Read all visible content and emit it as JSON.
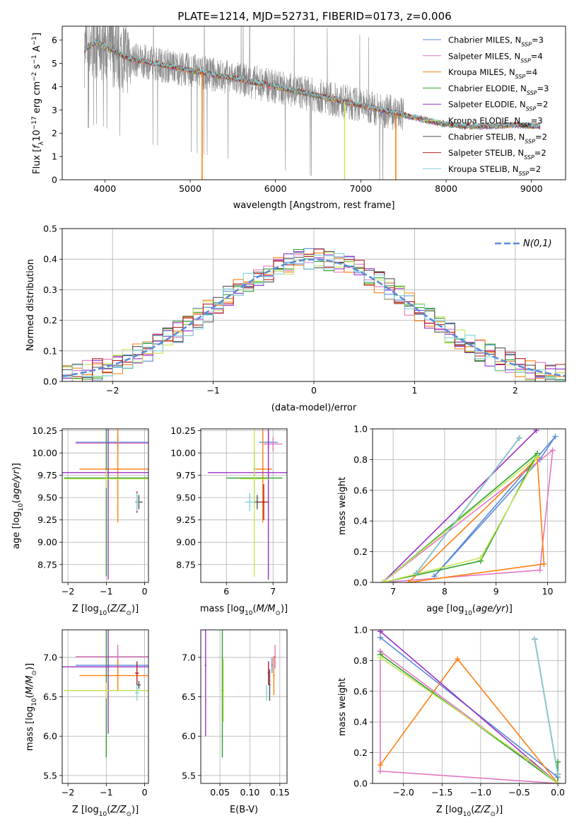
{
  "title": "PLATE=1214, MJD=52731, FIBERID=0173, z=0.006",
  "colors": {
    "chabrier_miles": "#5b8bd9",
    "salpeter_miles": "#e377c2",
    "kroupa_miles": "#ff7f0e",
    "chabrier_elodie": "#2ca02c",
    "salpeter_elodie": "#9b30c8",
    "kroupa_elodie": "#c8e65a",
    "chabrier_stelib": "#555555",
    "salpeter_stelib": "#b22222",
    "kroupa_stelib": "#7fd4dc",
    "data": "#8a8a8a",
    "normal": "#5b8bd9"
  },
  "chart_data": [
    {
      "type": "line",
      "id": "spectrum",
      "xlabel": "wavelength [Angstrom, rest frame]",
      "ylabel": "Flux [f_λ 10^-17 erg cm^-2 s^-1 A^-1]",
      "xlim": [
        3500,
        9400
      ],
      "ylim": [
        0,
        6.6
      ],
      "xticks": [
        "4000",
        "5000",
        "6000",
        "7000",
        "8000",
        "9000"
      ],
      "yticks": [
        "0",
        "1",
        "2",
        "3",
        "4",
        "5",
        "6"
      ],
      "legend_position": "top-right",
      "legend": [
        "Chabrier MILES, N_SSP=3",
        "Salpeter MILES, N_SSP=4",
        "Kroupa MILES, N_SSP=4",
        "Chabrier ELODIE, N_SSP=3",
        "Salpeter ELODIE, N_SSP=2",
        "Kroupa ELODIE, N_SSP=3",
        "Chabrier STELIB, N_SSP=2",
        "Salpeter STELIB, N_SSP=2",
        "Kroupa STELIB, N_SSP=2"
      ],
      "model_continuum": {
        "x": [
          3750,
          3800,
          3900,
          4000,
          4100,
          4200,
          4300,
          4500,
          4800,
          5000,
          5300,
          5600,
          6000,
          6500,
          7000,
          7300,
          7600,
          7900,
          8200,
          8500,
          8800,
          9100
        ],
        "y": [
          5.5,
          5.7,
          5.9,
          5.75,
          5.55,
          5.35,
          5.2,
          5.05,
          4.85,
          4.7,
          4.5,
          4.3,
          4.0,
          3.6,
          3.2,
          2.95,
          2.7,
          2.45,
          2.3,
          2.3,
          2.35,
          2.3
        ]
      },
      "drop_lines": [
        {
          "x": 5140,
          "y": 0,
          "series": "kroupa_miles"
        },
        {
          "x": 6810,
          "y": 0,
          "series": "kroupa_elodie"
        },
        {
          "x": 7410,
          "y": 0,
          "series": "kroupa_miles"
        }
      ]
    },
    {
      "type": "area",
      "id": "residual_histogram",
      "xlabel": "(data-model)/error",
      "ylabel": "Normed distribution",
      "xlim": [
        -2.5,
        2.5
      ],
      "ylim": [
        0,
        0.5
      ],
      "xticks": [
        "−2",
        "−1",
        "0",
        "1",
        "2"
      ],
      "yticks": [
        "0.0",
        "0.1",
        "0.2",
        "0.3",
        "0.4",
        "0.5"
      ],
      "grid": true,
      "bin_width": 0.1,
      "bins_start": -2.5,
      "legend": [
        "N(0,1)"
      ],
      "legend_position": "top-right",
      "normal_curve": {
        "mu": 0,
        "sigma": 1
      }
    },
    {
      "type": "scatter",
      "id": "age_vs_metallicity",
      "xlabel": "Z [log10(Z/Z⊙)]",
      "ylabel": "age [log10(age/yr)]",
      "xlim": [
        -2.15,
        0.1
      ],
      "ylim": [
        8.55,
        10.27
      ],
      "xticks": [
        "−2",
        "−1",
        "0"
      ],
      "yticks": [
        "8.75",
        "9.00",
        "9.25",
        "9.50",
        "9.75",
        "10.00",
        "10.25"
      ],
      "grid": true,
      "points": [
        {
          "series": "chabrier_miles",
          "x": -0.7,
          "y": 10.12,
          "xerr": 1.1,
          "yerr": 0.1
        },
        {
          "series": "salpeter_miles",
          "x": -0.7,
          "y": 10.11,
          "xerr": 1.1,
          "yerr": 0.05
        },
        {
          "series": "kroupa_miles",
          "x": -0.7,
          "y": 9.82,
          "xerr": 1.0,
          "yerr": 0.6
        },
        {
          "series": "chabrier_elodie",
          "x": -1.0,
          "y": 9.72,
          "xerr": 1.1,
          "yerr": 1.1
        },
        {
          "series": "salpeter_elodie",
          "x": -0.95,
          "y": 9.78,
          "xerr": 1.25,
          "yerr": 1.2
        },
        {
          "series": "kroupa_elodie",
          "x": -1.0,
          "y": 9.71,
          "xerr": 1.1,
          "yerr": 0.1
        },
        {
          "series": "chabrier_stelib",
          "x": -0.15,
          "y": 9.45,
          "xerr": 0.1,
          "yerr": 0.08
        },
        {
          "series": "salpeter_stelib",
          "x": -0.2,
          "y": 9.45,
          "xerr": 0.05,
          "yerr": 0.12
        },
        {
          "series": "kroupa_stelib",
          "x": -0.2,
          "y": 9.45,
          "xerr": 0.05,
          "yerr": 0.1
        }
      ]
    },
    {
      "type": "scatter",
      "id": "age_vs_mass",
      "xlabel": "mass [log10(M/M⊙)]",
      "ylabel": "",
      "xlim": [
        5.45,
        7.3
      ],
      "ylim": [
        8.55,
        10.27
      ],
      "xticks": [
        "6",
        "7"
      ],
      "yticks": [
        "8.75",
        "9.00",
        "9.25",
        "9.50",
        "9.75",
        "10.00",
        "10.25"
      ],
      "grid": true,
      "points": [
        {
          "series": "chabrier_miles",
          "x": 6.9,
          "y": 10.12,
          "xerr": 0.2,
          "yerr": 0.1
        },
        {
          "series": "salpeter_miles",
          "x": 7.0,
          "y": 10.1,
          "xerr": 0.2,
          "yerr": 0.08
        },
        {
          "series": "kroupa_miles",
          "x": 6.78,
          "y": 9.82,
          "xerr": 0.2,
          "yerr": 0.6
        },
        {
          "series": "chabrier_elodie",
          "x": 6.6,
          "y": 9.72,
          "xerr": 0.6,
          "yerr": 0.3
        },
        {
          "series": "salpeter_elodie",
          "x": 6.9,
          "y": 9.78,
          "xerr": 1.3,
          "yerr": 1.2
        },
        {
          "series": "kroupa_elodie",
          "x": 6.6,
          "y": 9.71,
          "xerr": 0.3,
          "yerr": 1.1
        },
        {
          "series": "chabrier_stelib",
          "x": 6.66,
          "y": 9.45,
          "xerr": 0.05,
          "yerr": 0.08
        },
        {
          "series": "salpeter_stelib",
          "x": 6.8,
          "y": 9.45,
          "xerr": 0.1,
          "yerr": 0.2
        },
        {
          "series": "kroupa_stelib",
          "x": 6.5,
          "y": 9.45,
          "xerr": 0.1,
          "yerr": 0.1
        }
      ]
    },
    {
      "type": "line",
      "id": "mass_weight_vs_age",
      "xlabel": "age [log10(age/yr)]",
      "ylabel": "mass weight",
      "xlim": [
        6.6,
        10.35
      ],
      "ylim": [
        0,
        1.0
      ],
      "xticks": [
        "7",
        "8",
        "9",
        "10"
      ],
      "yticks": [
        "0.0",
        "0.2",
        "0.4",
        "0.6",
        "0.8",
        "1.0"
      ],
      "grid": true,
      "series": [
        {
          "key": "chabrier_miles",
          "x": [
            7.8,
            9.85,
            10.15,
            7.8
          ],
          "y": [
            0.04,
            0.8,
            0.95,
            0.04
          ]
        },
        {
          "key": "salpeter_miles",
          "x": [
            6.8,
            9.85,
            10.1,
            6.8
          ],
          "y": [
            0.0,
            0.08,
            0.86,
            0.0
          ]
        },
        {
          "key": "kroupa_miles",
          "x": [
            7.3,
            9.8,
            9.93,
            7.3
          ],
          "y": [
            0.0,
            0.81,
            0.12,
            0.0
          ]
        },
        {
          "key": "chabrier_elodie",
          "x": [
            6.8,
            8.7,
            9.8,
            6.8
          ],
          "y": [
            0.0,
            0.14,
            0.84,
            0.0
          ]
        },
        {
          "key": "salpeter_elodie",
          "x": [
            6.8,
            9.78,
            6.8
          ],
          "y": [
            0.0,
            0.99,
            0.0
          ]
        },
        {
          "key": "kroupa_elodie",
          "x": [
            6.8,
            8.7,
            9.8,
            6.8
          ],
          "y": [
            0.0,
            0.16,
            0.82,
            0.0
          ]
        },
        {
          "key": "chabrier_stelib",
          "x": [
            7.45,
            9.45,
            7.45
          ],
          "y": [
            0.06,
            0.94,
            0.06
          ]
        },
        {
          "key": "salpeter_stelib",
          "x": [
            7.45,
            9.45,
            7.45
          ],
          "y": [
            0.06,
            0.94,
            0.06
          ]
        },
        {
          "key": "kroupa_stelib",
          "x": [
            7.45,
            9.45,
            7.45
          ],
          "y": [
            0.06,
            0.94,
            0.06
          ]
        }
      ]
    },
    {
      "type": "scatter",
      "id": "mass_vs_metallicity",
      "xlabel": "Z [log10(Z/Z⊙)]",
      "ylabel": "mass [log10(M/M⊙)]",
      "xlim": [
        -2.15,
        0.1
      ],
      "ylim": [
        5.4,
        7.35
      ],
      "xticks": [
        "−2",
        "−1",
        "0"
      ],
      "yticks": [
        "5.5",
        "6.0",
        "6.5",
        "7.0"
      ],
      "grid": true,
      "points": [
        {
          "series": "chabrier_miles",
          "x": -0.7,
          "y": 6.9,
          "xerr": 1.1,
          "yerr": 0.2
        },
        {
          "series": "salpeter_miles",
          "x": -0.7,
          "y": 7.01,
          "xerr": 1.1,
          "yerr": 0.15
        },
        {
          "series": "kroupa_miles",
          "x": -0.7,
          "y": 6.77,
          "xerr": 1.0,
          "yerr": 0.2
        },
        {
          "series": "chabrier_elodie",
          "x": -1.0,
          "y": 6.58,
          "xerr": 1.1,
          "yerr": 0.85
        },
        {
          "series": "salpeter_elodie",
          "x": -0.95,
          "y": 6.88,
          "xerr": 1.25,
          "yerr": 0.85
        },
        {
          "series": "kroupa_elodie",
          "x": -1.0,
          "y": 6.58,
          "xerr": 1.1,
          "yerr": 0.1
        },
        {
          "series": "chabrier_stelib",
          "x": -0.15,
          "y": 6.65,
          "xerr": 0.05,
          "yerr": 0.05
        },
        {
          "series": "salpeter_stelib",
          "x": -0.2,
          "y": 6.8,
          "xerr": 0.05,
          "yerr": 0.15
        },
        {
          "series": "kroupa_stelib",
          "x": -0.2,
          "y": 6.55,
          "xerr": 0.05,
          "yerr": 0.1
        }
      ]
    },
    {
      "type": "scatter",
      "id": "mass_vs_ebv",
      "xlabel": "E(B-V)",
      "ylabel": "",
      "xlim": [
        0.018,
        0.162
      ],
      "ylim": [
        5.4,
        7.35
      ],
      "xticks": [
        "0.05",
        "0.10",
        "0.15"
      ],
      "yticks": [
        "5.5",
        "6.0",
        "6.5",
        "7.0"
      ],
      "grid": true,
      "points": [
        {
          "series": "salpeter_elodie",
          "x": 0.026,
          "y": 6.9,
          "yerr": 0.9
        },
        {
          "series": "chabrier_elodie",
          "x": 0.054,
          "y": 6.58,
          "yerr": 0.85
        },
        {
          "series": "kroupa_elodie",
          "x": 0.056,
          "y": 6.58,
          "yerr": 0.4
        },
        {
          "series": "chabrier_stelib",
          "x": 0.133,
          "y": 6.65,
          "yerr": 0.2
        },
        {
          "series": "salpeter_stelib",
          "x": 0.131,
          "y": 6.8,
          "yerr": 0.15
        },
        {
          "series": "kroupa_stelib",
          "x": 0.128,
          "y": 6.55,
          "yerr": 0.1
        },
        {
          "series": "kroupa_miles",
          "x": 0.14,
          "y": 6.77,
          "yerr": 0.25
        },
        {
          "series": "salpeter_miles",
          "x": 0.142,
          "y": 7.01,
          "yerr": 0.15
        },
        {
          "series": "chabrier_miles",
          "x": 0.137,
          "y": 6.9,
          "yerr": 0.1
        }
      ]
    },
    {
      "type": "line",
      "id": "mass_weight_vs_metallicity",
      "xlabel": "Z [log10(Z/Z⊙)]",
      "ylabel": "mass weight",
      "xlim": [
        -2.4,
        0.1
      ],
      "ylim": [
        0,
        1.0
      ],
      "xticks": [
        "−2.0",
        "−1.5",
        "−1.0",
        "−0.5",
        "0.0"
      ],
      "yticks": [
        "0.0",
        "0.2",
        "0.4",
        "0.6",
        "0.8",
        "1.0"
      ],
      "grid": true,
      "series": [
        {
          "key": "chabrier_miles",
          "x": [
            -2.3,
            0.0,
            0.0
          ],
          "y": [
            0.95,
            0.04,
            0.0
          ]
        },
        {
          "key": "salpeter_miles",
          "x": [
            -2.3,
            -2.3,
            0.0,
            -2.3
          ],
          "y": [
            0.86,
            0.08,
            0.0,
            0.86
          ]
        },
        {
          "key": "kroupa_miles",
          "x": [
            -2.3,
            -1.3,
            0.0
          ],
          "y": [
            0.12,
            0.81,
            0.0
          ]
        },
        {
          "key": "chabrier_elodie",
          "x": [
            -2.3,
            0.0,
            0.0
          ],
          "y": [
            0.84,
            0.0,
            0.14
          ]
        },
        {
          "key": "salpeter_elodie",
          "x": [
            -2.3,
            0.0,
            -2.3
          ],
          "y": [
            0.99,
            0.0,
            0.99
          ]
        },
        {
          "key": "kroupa_elodie",
          "x": [
            -2.3,
            -0.4,
            0.0,
            0.0
          ],
          "y": [
            0.82,
            0.16,
            0.0,
            0.0
          ]
        },
        {
          "key": "chabrier_stelib",
          "x": [
            -0.3,
            0.0
          ],
          "y": [
            0.94,
            0.06
          ]
        },
        {
          "key": "salpeter_stelib",
          "x": [
            -0.3,
            0.0
          ],
          "y": [
            0.94,
            0.06
          ]
        },
        {
          "key": "kroupa_stelib",
          "x": [
            -0.3,
            0.0
          ],
          "y": [
            0.94,
            0.06
          ]
        }
      ]
    }
  ]
}
